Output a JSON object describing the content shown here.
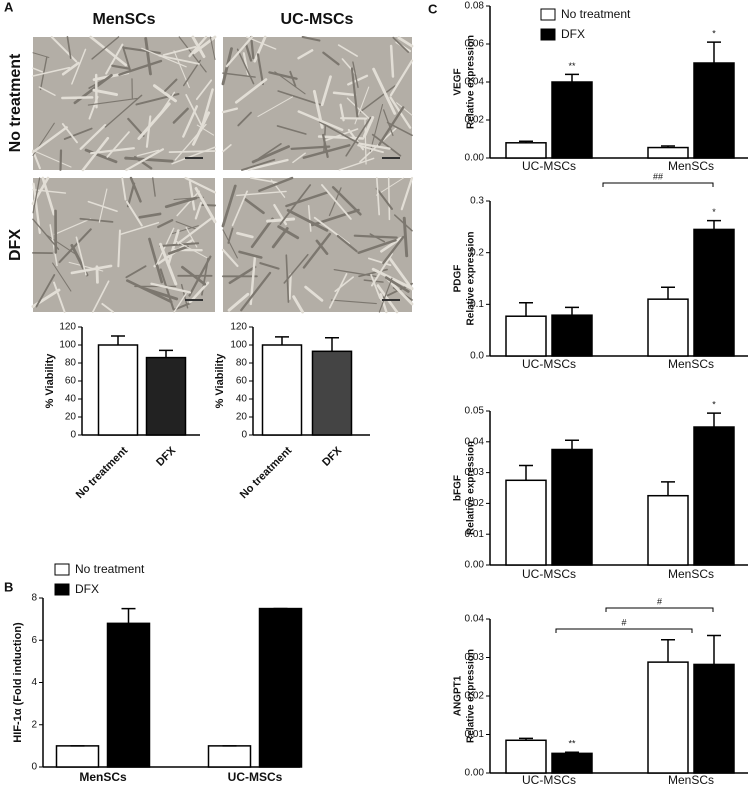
{
  "panels": {
    "a": "A",
    "b": "B",
    "c": "C"
  },
  "images": {
    "columns": [
      "MenSCs",
      "UC-MSCs"
    ],
    "rows": [
      "No treatment",
      "DFX"
    ]
  },
  "chart_data": [
    {
      "type": "bar",
      "ylabel": "% Viability",
      "categories": [
        "No treatment",
        "DFX"
      ],
      "values": [
        100,
        86
      ],
      "errors": [
        10,
        8
      ],
      "colors": [
        "#ffffff",
        "#222222"
      ],
      "ylim": [
        0,
        120
      ],
      "yticks": [
        0,
        20,
        40,
        60,
        80,
        100,
        120
      ]
    },
    {
      "type": "bar",
      "ylabel": "% Viability",
      "categories": [
        "No treatment",
        "DFX"
      ],
      "values": [
        100,
        93
      ],
      "errors": [
        9,
        15
      ],
      "colors": [
        "#ffffff",
        "#444444"
      ],
      "ylim": [
        0,
        120
      ],
      "yticks": [
        0,
        20,
        40,
        60,
        80,
        100,
        120
      ]
    },
    {
      "type": "bar",
      "ylabel": "HIF-1α (Fold induction)",
      "categories": [
        "MenSCs",
        "UC-MSCs"
      ],
      "series": [
        {
          "name": "No treatment",
          "color": "#ffffff",
          "values": [
            1,
            1
          ],
          "errors": [
            0,
            0
          ]
        },
        {
          "name": "DFX",
          "color": "#000000",
          "values": [
            6.8,
            7.5
          ],
          "errors": [
            0.7,
            0
          ]
        }
      ],
      "ylim": [
        0,
        8
      ],
      "yticks": [
        0,
        2,
        4,
        6,
        8
      ]
    },
    {
      "type": "bar",
      "title": "VEGF",
      "ylabel": "Relative expression",
      "categories": [
        "UC-MSCs",
        "MenSCs"
      ],
      "series": [
        {
          "name": "No treatment",
          "color": "#ffffff",
          "values": [
            0.008,
            0.0055
          ],
          "errors": [
            0.0008,
            0.0008
          ]
        },
        {
          "name": "DFX",
          "color": "#000000",
          "values": [
            0.04,
            0.05
          ],
          "errors": [
            0.004,
            0.011
          ]
        }
      ],
      "ylim": [
        0,
        0.08
      ],
      "yticks": [
        {
          "value": 0,
          "label": "0.00"
        },
        0.02,
        0.04,
        0.06,
        0.08
      ],
      "annotations": [
        "**",
        "*"
      ]
    },
    {
      "type": "bar",
      "title": "PDGF",
      "ylabel": "Relative expression",
      "categories": [
        "UC-MSCs",
        "MenSCs"
      ],
      "series": [
        {
          "color": "#ffffff",
          "values": [
            0.077,
            0.11
          ],
          "errors": [
            0.026,
            0.023
          ]
        },
        {
          "color": "#000000",
          "values": [
            0.079,
            0.245
          ],
          "errors": [
            0.015,
            0.017
          ]
        }
      ],
      "ylim": [
        0,
        0.3
      ],
      "yticks": [
        {
          "value": 0,
          "label": "0.0"
        },
        0.1,
        0.2,
        0.3
      ],
      "annotations": [
        "##",
        "*"
      ]
    },
    {
      "type": "bar",
      "title": "bFGF",
      "ylabel": "Relative expression",
      "categories": [
        "UC-MSCs",
        "MenSCs"
      ],
      "series": [
        {
          "color": "#ffffff",
          "values": [
            0.0275,
            0.0225
          ],
          "errors": [
            0.0048,
            0.0045
          ]
        },
        {
          "color": "#000000",
          "values": [
            0.0375,
            0.0448
          ],
          "errors": [
            0.003,
            0.0045
          ]
        }
      ],
      "ylim": [
        0,
        0.05
      ],
      "yticks": [
        {
          "value": 0,
          "label": "0.00"
        },
        0.01,
        0.02,
        0.03,
        0.04,
        0.05
      ],
      "annotations": [
        "*"
      ]
    },
    {
      "type": "bar",
      "title": "ANGPT1",
      "ylabel": "Relative expression",
      "categories": [
        "UC-MSCs",
        "MenSCs"
      ],
      "series": [
        {
          "color": "#ffffff",
          "values": [
            0.0085,
            0.0288
          ],
          "errors": [
            0.0005,
            0.0058
          ]
        },
        {
          "color": "#000000",
          "values": [
            0.0051,
            0.0282
          ],
          "errors": [
            0.0003,
            0.0075
          ]
        }
      ],
      "ylim": [
        0,
        0.04
      ],
      "yticks": [
        {
          "value": 0,
          "label": "0.00"
        },
        0.01,
        0.02,
        0.03,
        0.04
      ],
      "annotations": [
        "**",
        "#",
        "#"
      ]
    }
  ]
}
